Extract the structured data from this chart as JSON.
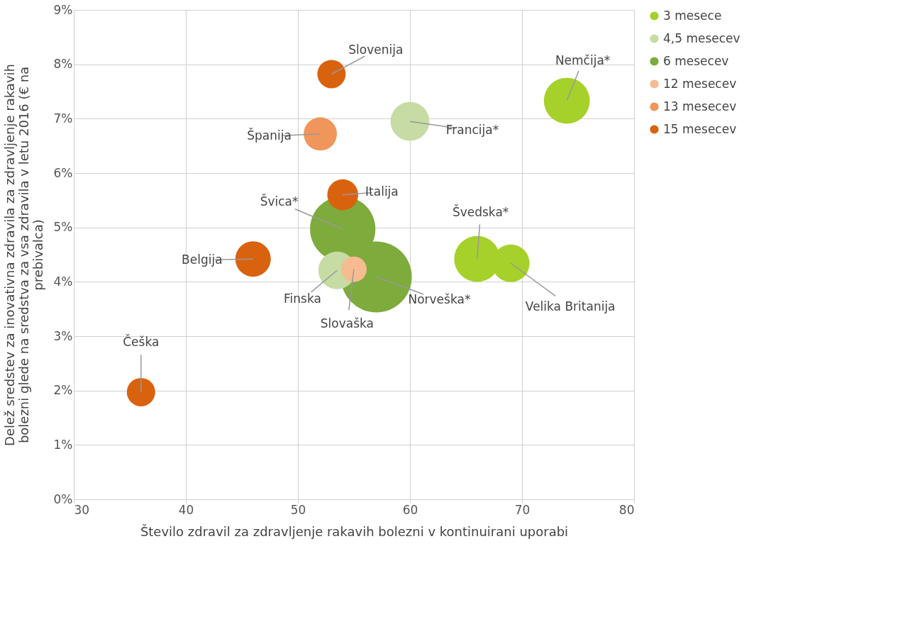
{
  "chart_data": {
    "type": "bubble",
    "xlabel": "Število zdravil za zdravljenje rakavih bolezni v kontinuirani uporabi",
    "ylabel": "Delež sredstev za inovativna zdravila za zdravljenje rakavih bolezni glede na sredstva za vsa zdravila v letu 2016 (€ na prebivalca)",
    "xlim": [
      30,
      80
    ],
    "xticks": [
      30,
      40,
      50,
      60,
      70,
      80
    ],
    "ylim": [
      0,
      9
    ],
    "yticks": [
      {
        "value": 0,
        "label": "0%"
      },
      {
        "value": 1,
        "label": "1%"
      },
      {
        "value": 2,
        "label": "2%"
      },
      {
        "value": 3,
        "label": "3%"
      },
      {
        "value": 4,
        "label": "4%"
      },
      {
        "value": 5,
        "label": "5%"
      },
      {
        "value": 6,
        "label": "6%"
      },
      {
        "value": 7,
        "label": "7%"
      },
      {
        "value": 8,
        "label": "8%"
      },
      {
        "value": 9,
        "label": "9%"
      }
    ],
    "grid": true,
    "legend": "right",
    "series": [
      {
        "name": "3 mesece",
        "color": "#a6d12a",
        "x": [
          74,
          66,
          69
        ],
        "values": [
          7.33,
          4.42,
          4.34
        ],
        "sizes": [
          0.42,
          0.42,
          0.28
        ]
      },
      {
        "name": "4,5 mesecev",
        "color": "#c6dca4",
        "x": [
          60,
          53.5
        ],
        "values": [
          6.95,
          4.21
        ],
        "sizes": [
          0.3,
          0.28
        ]
      },
      {
        "name": "6 mesecev",
        "color": "#7dab3c",
        "x": [
          54,
          57
        ],
        "values": [
          4.97,
          4.09
        ],
        "sizes": [
          0.85,
          1
        ]
      },
      {
        "name": "12 mesecev",
        "color": "#f6bb90",
        "x": [
          55
        ],
        "values": [
          4.23
        ],
        "sizes": [
          0.13
        ]
      },
      {
        "name": "13 mesecev",
        "color": "#f0965a",
        "x": [
          52
        ],
        "values": [
          6.72
        ],
        "sizes": [
          0.22
        ]
      },
      {
        "name": "15 mesecev",
        "color": "#d9620f",
        "x": [
          53,
          54,
          46,
          36
        ],
        "values": [
          7.82,
          5.6,
          4.42,
          1.97
        ],
        "sizes": [
          0.16,
          0.19,
          0.25,
          0.16
        ]
      }
    ],
    "annotations": [
      {
        "text": "Slovenija",
        "x": 53,
        "y": 7.82
      },
      {
        "text": "Nemčija*",
        "x": 74,
        "y": 7.33
      },
      {
        "text": "Francija*",
        "x": 60,
        "y": 6.95
      },
      {
        "text": "Španija",
        "x": 52,
        "y": 6.72
      },
      {
        "text": "Italija",
        "x": 54,
        "y": 5.6
      },
      {
        "text": "Švica*",
        "x": 54,
        "y": 4.97
      },
      {
        "text": "Švedska*",
        "x": 66,
        "y": 4.42
      },
      {
        "text": "Belgija",
        "x": 46,
        "y": 4.42
      },
      {
        "text": "Finska",
        "x": 53.5,
        "y": 4.21
      },
      {
        "text": "Slovaška",
        "x": 55,
        "y": 4.23
      },
      {
        "text": "Norveška*",
        "x": 57,
        "y": 4.09
      },
      {
        "text": "Velika Britanija",
        "x": 69,
        "y": 4.34
      },
      {
        "text": "Češka",
        "x": 36,
        "y": 1.97
      }
    ]
  }
}
